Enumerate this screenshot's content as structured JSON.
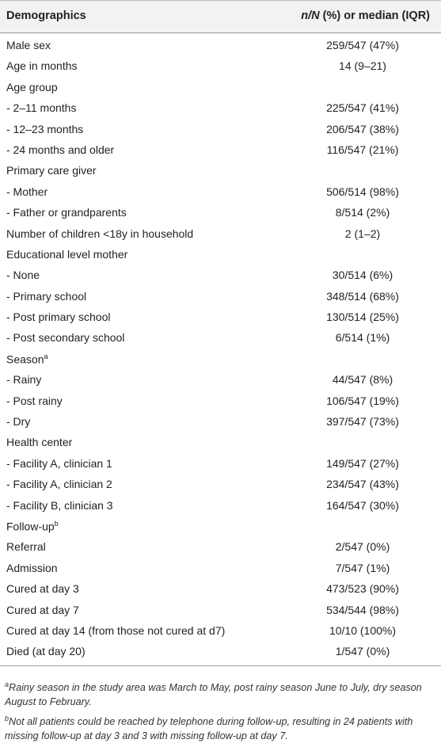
{
  "table": {
    "header": [
      {
        "text": "Demographics"
      },
      {
        "italic": "n/N",
        "text": "(%) or median (IQR)"
      }
    ],
    "rows": [
      {
        "label": "Male sex",
        "value": "259/547 (47%)"
      },
      {
        "label": "Age in months",
        "value": "14 (9–21)"
      },
      {
        "label": "Age group"
      },
      {
        "label": "- 2–11 months",
        "value": "225/547 (41%)"
      },
      {
        "label": "- 12–23 months",
        "value": "206/547 (38%)"
      },
      {
        "label": "- 24 months and older",
        "value": "116/547 (21%)"
      },
      {
        "label": "Primary care giver"
      },
      {
        "label": "- Mother",
        "value": "506/514 (98%)"
      },
      {
        "label": "- Father or grandparents",
        "value": "8/514 (2%)"
      },
      {
        "label": "Number of children <18y in household",
        "value": "2 (1–2)"
      },
      {
        "label": "Educational level mother"
      },
      {
        "label": "- None",
        "value": "30/514 (6%)"
      },
      {
        "label": "- Primary school",
        "value": "348/514 (68%)"
      },
      {
        "label": "- Post primary school",
        "value": "130/514 (25%)"
      },
      {
        "label": "- Post secondary school",
        "value": "6/514 (1%)"
      },
      {
        "label": "Season",
        "note": "a"
      },
      {
        "label": "- Rainy",
        "value": "44/547 (8%)"
      },
      {
        "label": "- Post rainy",
        "value": "106/547 (19%)"
      },
      {
        "label": "- Dry",
        "value": "397/547 (73%)"
      },
      {
        "label": "Health center"
      },
      {
        "label": "- Facility A, clinician 1",
        "value": "149/547 (27%)"
      },
      {
        "label": "- Facility A, clinician 2",
        "value": "234/547 (43%)"
      },
      {
        "label": "- Facility B, clinician 3",
        "value": "164/547 (30%)"
      },
      {
        "label": "Follow-up",
        "note": "b"
      },
      {
        "label": "Referral",
        "value": "2/547 (0%)"
      },
      {
        "label": "Admission",
        "value": "7/547 (1%)"
      },
      {
        "label": "Cured at day 3",
        "value": "473/523 (90%)"
      },
      {
        "label": "Cured at day 7",
        "value": "534/544 (98%)"
      },
      {
        "label": "Cured at day 14 (from those not cured at d7)",
        "value": "10/10 (100%)"
      },
      {
        "label": "Died (at day 20)",
        "value": "1/547 (0%)"
      }
    ],
    "footnotes": [
      {
        "mark": "a",
        "text": "Rainy season in the study area was March to May, post rainy season June to July, dry season August to February."
      },
      {
        "mark": "b",
        "text": "Not all patients could be reached by telephone during follow-up, resulting in 24 patients with missing follow-up at day 3 and 3 with missing follow-up at day 7."
      }
    ]
  }
}
